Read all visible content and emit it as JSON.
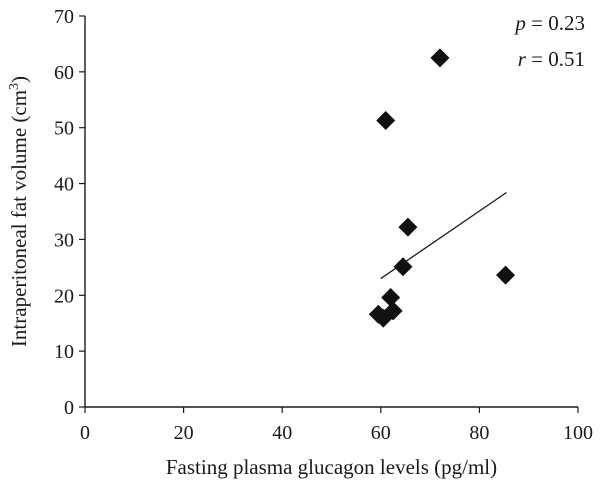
{
  "chart_data": {
    "type": "scatter",
    "title": "",
    "xlabel": "Fasting plasma glucagon levels (pg/ml)",
    "ylabel": "Intraperitoneal fat volume (cm",
    "ylabel_sup": "3",
    "ylabel_end": ")",
    "xlim": [
      0,
      100
    ],
    "ylim": [
      0,
      70
    ],
    "x_ticks": [
      0,
      20,
      40,
      60,
      80,
      100
    ],
    "y_ticks": [
      0,
      10,
      20,
      30,
      40,
      50,
      60,
      70
    ],
    "marker_color": "#111111",
    "grid": false,
    "points": [
      {
        "x": 72,
        "y": 62.5
      },
      {
        "x": 61,
        "y": 51.3
      },
      {
        "x": 65.5,
        "y": 32.2
      },
      {
        "x": 64.5,
        "y": 25.1
      },
      {
        "x": 85.3,
        "y": 23.6
      },
      {
        "x": 62,
        "y": 19.6
      },
      {
        "x": 62.5,
        "y": 17.2
      },
      {
        "x": 59.5,
        "y": 16.6
      },
      {
        "x": 60.5,
        "y": 15.9
      }
    ],
    "fit_line": {
      "x": [
        60,
        85.5
      ],
      "y": [
        23,
        38.4
      ]
    },
    "annotations": {
      "p_symbol": "p",
      "p_value": " = 0.23",
      "r_symbol": "r",
      "r_value": " = 0.51"
    }
  }
}
